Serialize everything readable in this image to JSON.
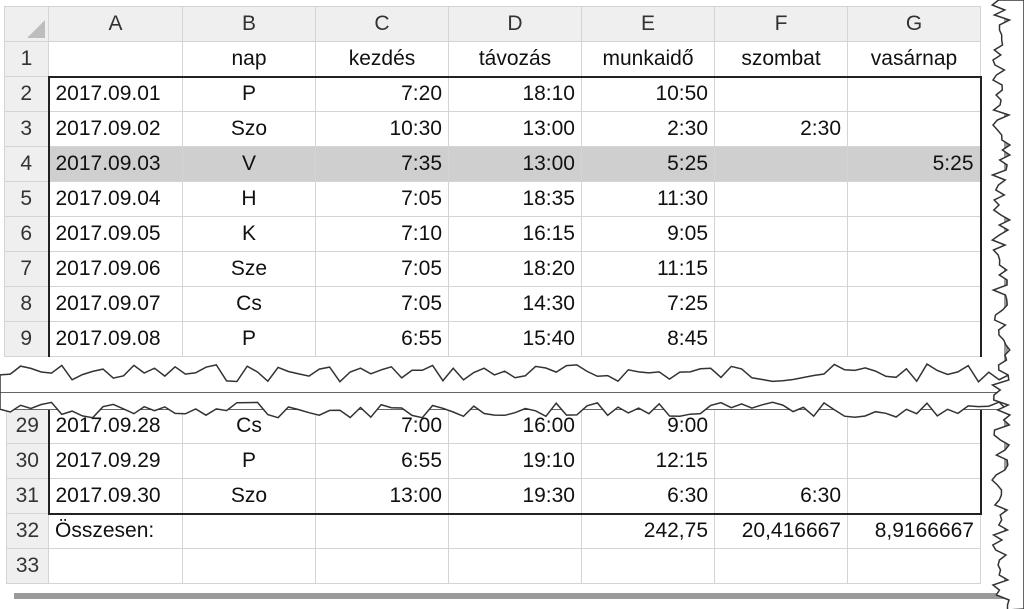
{
  "columns": [
    "A",
    "B",
    "C",
    "D",
    "E",
    "F",
    "G"
  ],
  "header_row": {
    "num": "1",
    "cells": [
      "",
      "nap",
      "kezdés",
      "távozás",
      "munkaidő",
      "szombat",
      "vasárnap"
    ]
  },
  "top_rows": [
    {
      "num": "2",
      "cells": [
        "2017.09.01",
        "P",
        "7:20",
        "18:10",
        "10:50",
        "",
        ""
      ],
      "bold_e": true
    },
    {
      "num": "3",
      "cells": [
        "2017.09.02",
        "Szo",
        "10:30",
        "13:00",
        "2:30",
        "2:30",
        ""
      ],
      "bold_e": false
    },
    {
      "num": "4",
      "cells": [
        "2017.09.03",
        "V",
        "7:35",
        "13:00",
        "5:25",
        "",
        "5:25"
      ],
      "bold_e": false,
      "selected": true
    },
    {
      "num": "5",
      "cells": [
        "2017.09.04",
        "H",
        "7:05",
        "18:35",
        "11:30",
        "",
        ""
      ],
      "bold_e": true
    },
    {
      "num": "6",
      "cells": [
        "2017.09.05",
        "K",
        "7:10",
        "16:15",
        "9:05",
        "",
        ""
      ],
      "bold_e": true
    },
    {
      "num": "7",
      "cells": [
        "2017.09.06",
        "Sze",
        "7:05",
        "18:20",
        "11:15",
        "",
        ""
      ],
      "bold_e": true
    },
    {
      "num": "8",
      "cells": [
        "2017.09.07",
        "Cs",
        "7:05",
        "14:30",
        "7:25",
        "",
        ""
      ],
      "bold_e": false
    },
    {
      "num": "9",
      "cells": [
        "2017.09.08",
        "P",
        "6:55",
        "15:40",
        "8:45",
        "",
        ""
      ],
      "bold_e": true
    }
  ],
  "bottom_rows": [
    {
      "num": "29",
      "cells": [
        "2017.09.28",
        "Cs",
        "7:00",
        "16:00",
        "9:00",
        "",
        ""
      ],
      "bold_e": true
    },
    {
      "num": "30",
      "cells": [
        "2017.09.29",
        "P",
        "6:55",
        "19:10",
        "12:15",
        "",
        ""
      ],
      "bold_e": true
    },
    {
      "num": "31",
      "cells": [
        "2017.09.30",
        "Szo",
        "13:00",
        "19:30",
        "6:30",
        "6:30",
        ""
      ],
      "bold_e": false
    }
  ],
  "total_row": {
    "num": "32",
    "cells": [
      "Összesen:",
      "",
      "",
      "",
      "242,75",
      "20,416667",
      "8,9166667"
    ]
  },
  "last_row": {
    "num": "33"
  },
  "colors": {
    "header_bg": "#efefef",
    "selection": "#cfcfcf",
    "grid": "#d4d4d4"
  }
}
